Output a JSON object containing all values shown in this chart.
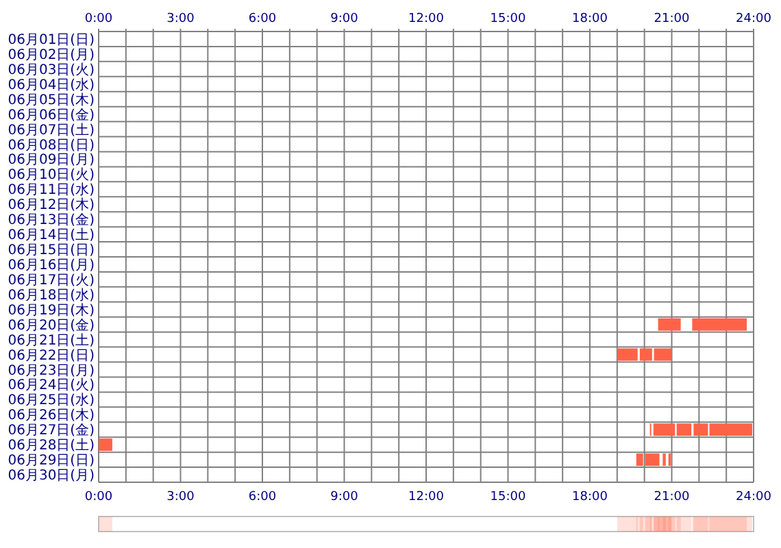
{
  "chart_data": {
    "type": "bar",
    "orientation": "horizontal",
    "categories": [
      "06月01日(日)",
      "06月02日(月)",
      "06月03日(火)",
      "06月04日(水)",
      "06月05日(木)",
      "06月06日(金)",
      "06月07日(土)",
      "06月08日(日)",
      "06月09日(月)",
      "06月10日(火)",
      "06月11日(水)",
      "06月12日(木)",
      "06月13日(金)",
      "06月14日(土)",
      "06月15日(日)",
      "06月16日(月)",
      "06月17日(火)",
      "06月18日(水)",
      "06月19日(木)",
      "06月20日(金)",
      "06月21日(土)",
      "06月22日(日)",
      "06月23日(月)",
      "06月24日(火)",
      "06月25日(水)",
      "06月26日(木)",
      "06月27日(金)",
      "06月28日(土)",
      "06月29日(日)",
      "06月30日(月)"
    ],
    "series": [
      {
        "color": "#ff6347",
        "base": [
          null,
          null,
          null,
          null,
          null,
          null,
          null,
          null,
          null,
          null,
          null,
          null,
          null,
          null,
          null,
          null,
          null,
          null,
          null,
          20.5,
          null,
          19.0,
          null,
          null,
          null,
          null,
          20.2,
          0,
          19.7,
          null
        ],
        "values": [
          null,
          null,
          null,
          null,
          null,
          null,
          null,
          null,
          null,
          null,
          null,
          null,
          null,
          null,
          null,
          null,
          null,
          null,
          null,
          0.83,
          null,
          0.75,
          null,
          null,
          null,
          null,
          0.05,
          0.5,
          0.25,
          null
        ]
      },
      {
        "color": "#ff6347",
        "base": [
          null,
          null,
          null,
          null,
          null,
          null,
          null,
          null,
          null,
          null,
          null,
          null,
          null,
          null,
          null,
          null,
          null,
          null,
          null,
          21.75,
          null,
          19.83,
          null,
          null,
          null,
          null,
          20.33,
          null,
          20.03,
          null
        ],
        "values": [
          null,
          null,
          null,
          null,
          null,
          null,
          null,
          null,
          null,
          null,
          null,
          null,
          null,
          null,
          null,
          null,
          null,
          null,
          null,
          2.0,
          null,
          0.45,
          null,
          null,
          null,
          null,
          0.79,
          null,
          0.52,
          null
        ]
      },
      {
        "color": "#ff6347",
        "base": [
          null,
          null,
          null,
          null,
          null,
          null,
          null,
          null,
          null,
          null,
          null,
          null,
          null,
          null,
          null,
          null,
          null,
          null,
          null,
          null,
          null,
          20.35,
          null,
          null,
          null,
          null,
          21.18,
          null,
          20.67,
          null
        ],
        "values": [
          null,
          null,
          null,
          null,
          null,
          null,
          null,
          null,
          null,
          null,
          null,
          null,
          null,
          null,
          null,
          null,
          null,
          null,
          null,
          null,
          null,
          0.65,
          null,
          null,
          null,
          null,
          0.54,
          null,
          0.11,
          null
        ]
      },
      {
        "color": "#ff6347",
        "base": [
          null,
          null,
          null,
          null,
          null,
          null,
          null,
          null,
          null,
          null,
          null,
          null,
          null,
          null,
          null,
          null,
          null,
          null,
          null,
          null,
          null,
          null,
          null,
          null,
          null,
          null,
          21.8,
          null,
          20.88,
          null
        ],
        "values": [
          null,
          null,
          null,
          null,
          null,
          null,
          null,
          null,
          null,
          null,
          null,
          null,
          null,
          null,
          null,
          null,
          null,
          null,
          null,
          null,
          null,
          null,
          null,
          null,
          null,
          null,
          0.53,
          null,
          0.09,
          null
        ]
      },
      {
        "color": "#ff6347",
        "base": [
          null,
          null,
          null,
          null,
          null,
          null,
          null,
          null,
          null,
          null,
          null,
          null,
          null,
          null,
          null,
          null,
          null,
          null,
          null,
          null,
          null,
          null,
          null,
          null,
          null,
          null,
          22.38,
          null,
          null,
          null
        ],
        "values": [
          null,
          null,
          null,
          null,
          null,
          null,
          null,
          null,
          null,
          null,
          null,
          null,
          null,
          null,
          null,
          null,
          null,
          null,
          null,
          null,
          null,
          null,
          null,
          null,
          null,
          null,
          1.57,
          null,
          null,
          null
        ]
      }
    ],
    "xlim": [
      0,
      24
    ],
    "xticks": [
      {
        "value": 0,
        "label": "0:00"
      },
      {
        "value": 1,
        "label": null
      },
      {
        "value": 2,
        "label": null
      },
      {
        "value": 3,
        "label": "3:00"
      },
      {
        "value": 4,
        "label": null
      },
      {
        "value": 5,
        "label": null
      },
      {
        "value": 6,
        "label": "6:00"
      },
      {
        "value": 7,
        "label": null
      },
      {
        "value": 8,
        "label": null
      },
      {
        "value": 9,
        "label": "9:00"
      },
      {
        "value": 10,
        "label": null
      },
      {
        "value": 11,
        "label": null
      },
      {
        "value": 12,
        "label": "12:00"
      },
      {
        "value": 13,
        "label": null
      },
      {
        "value": 14,
        "label": null
      },
      {
        "value": 15,
        "label": "15:00"
      },
      {
        "value": 16,
        "label": null
      },
      {
        "value": 17,
        "label": null
      },
      {
        "value": 18,
        "label": "18:00"
      },
      {
        "value": 19,
        "label": null
      },
      {
        "value": 20,
        "label": null
      },
      {
        "value": 21,
        "label": "21:00"
      },
      {
        "value": 22,
        "label": null
      },
      {
        "value": 23,
        "label": null
      },
      {
        "value": 24,
        "label": "24:00"
      }
    ],
    "x2lim": [
      0,
      24
    ],
    "x2ticks": [
      {
        "value": 0,
        "label": "0:00"
      },
      {
        "value": 1,
        "label": null
      },
      {
        "value": 2,
        "label": null
      },
      {
        "value": 3,
        "label": "3:00"
      },
      {
        "value": 4,
        "label": null
      },
      {
        "value": 5,
        "label": null
      },
      {
        "value": 6,
        "label": "6:00"
      },
      {
        "value": 7,
        "label": null
      },
      {
        "value": 8,
        "label": null
      },
      {
        "value": 9,
        "label": "9:00"
      },
      {
        "value": 10,
        "label": null
      },
      {
        "value": 11,
        "label": null
      },
      {
        "value": 12,
        "label": "12:00"
      },
      {
        "value": 13,
        "label": null
      },
      {
        "value": 14,
        "label": null
      },
      {
        "value": 15,
        "label": "15:00"
      },
      {
        "value": 16,
        "label": null
      },
      {
        "value": 17,
        "label": null
      },
      {
        "value": 18,
        "label": "18:00"
      },
      {
        "value": 19,
        "label": null
      },
      {
        "value": 20,
        "label": null
      },
      {
        "value": 21,
        "label": "21:00"
      },
      {
        "value": 22,
        "label": null
      },
      {
        "value": 23,
        "label": null
      },
      {
        "value": 24,
        "label": "24:00"
      }
    ],
    "grid": true
  }
}
